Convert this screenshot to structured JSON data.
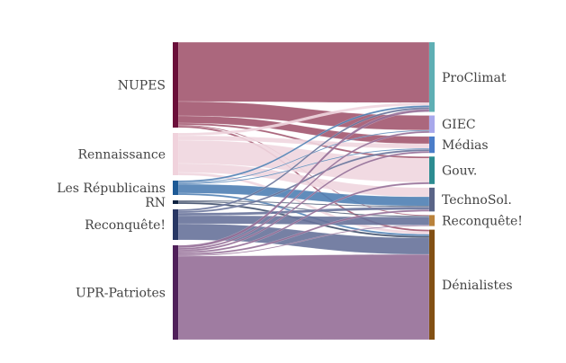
{
  "diagram": {
    "type": "sankey",
    "title": "",
    "sources": [
      {
        "label": "NUPES",
        "color": "#6b0f3a",
        "fill": "#a2566f"
      },
      {
        "label": "Rennaissance",
        "color": "#f0d2dc",
        "fill": "#efd6df"
      },
      {
        "label": "Les Républicains",
        "color": "#1e5a96",
        "fill": "#4f7fb4"
      },
      {
        "label": "RN",
        "color": "#0f2341",
        "fill": "#3c4b68"
      },
      {
        "label": "Reconquête!",
        "color": "#283764",
        "fill": "#67729a"
      },
      {
        "label": "UPR-Patriotes",
        "color": "#50205a",
        "fill": "#956e97"
      }
    ],
    "targets": [
      {
        "label": "ProClimat",
        "color": "#5fafb4"
      },
      {
        "label": "GIEC",
        "color": "#a8a8eb"
      },
      {
        "label": "Médias",
        "color": "#4b7dc8"
      },
      {
        "label": "Gouv.",
        "color": "#2d8c91"
      },
      {
        "label": "TechnoSol.",
        "color": "#5a6487"
      },
      {
        "label": "Reconquête!",
        "color": "#b9823c"
      },
      {
        "label": "Dénialistes",
        "color": "#825014"
      }
    ],
    "flows": [
      {
        "source": 0,
        "target": 0,
        "value": 66
      },
      {
        "source": 0,
        "target": 1,
        "value": 16
      },
      {
        "source": 0,
        "target": 2,
        "value": 8
      },
      {
        "source": 0,
        "target": 3,
        "value": 2
      },
      {
        "source": 0,
        "target": 5,
        "value": 1
      },
      {
        "source": 0,
        "target": 6,
        "value": 2
      },
      {
        "source": 1,
        "target": 3,
        "value": 26
      },
      {
        "source": 1,
        "target": 4,
        "value": 10
      },
      {
        "source": 1,
        "target": 2,
        "value": 5
      },
      {
        "source": 1,
        "target": 0,
        "value": 3
      },
      {
        "source": 1,
        "target": 6,
        "value": 3
      },
      {
        "source": 2,
        "target": 4,
        "value": 10
      },
      {
        "source": 2,
        "target": 0,
        "value": 2
      },
      {
        "source": 2,
        "target": 1,
        "value": 1
      },
      {
        "source": 2,
        "target": 2,
        "value": 1
      },
      {
        "source": 2,
        "target": 6,
        "value": 2
      },
      {
        "source": 3,
        "target": 6,
        "value": 2
      },
      {
        "source": 3,
        "target": 4,
        "value": 1
      },
      {
        "source": 3,
        "target": 5,
        "value": 1
      },
      {
        "source": 4,
        "target": 6,
        "value": 18
      },
      {
        "source": 4,
        "target": 5,
        "value": 9
      },
      {
        "source": 4,
        "target": 4,
        "value": 3
      },
      {
        "source": 4,
        "target": 0,
        "value": 2
      },
      {
        "source": 4,
        "target": 2,
        "value": 2
      },
      {
        "source": 5,
        "target": 6,
        "value": 93
      },
      {
        "source": 5,
        "target": 0,
        "value": 3
      },
      {
        "source": 5,
        "target": 2,
        "value": 2
      },
      {
        "source": 5,
        "target": 1,
        "value": 2
      },
      {
        "source": 5,
        "target": 3,
        "value": 2
      },
      {
        "source": 5,
        "target": 4,
        "value": 2
      },
      {
        "source": 5,
        "target": 5,
        "value": 1
      }
    ]
  }
}
